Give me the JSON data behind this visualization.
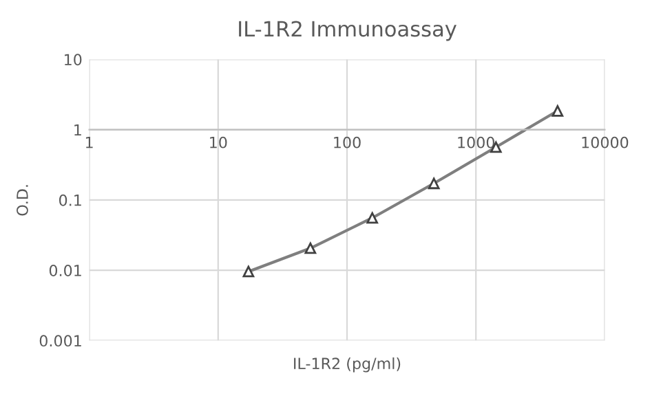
{
  "chart_data": {
    "type": "line",
    "title": "IL-1R2 Immunoassay",
    "xlabel": "IL-1R2 (pg/ml)",
    "ylabel": "O.D.",
    "x": [
      17.2,
      52,
      157,
      472,
      1430,
      4300
    ],
    "series": [
      {
        "color": "#7f7f7f",
        "values": [
          0.0096,
          0.0206,
          0.0556,
          0.172,
          0.565,
          1.85
        ]
      }
    ],
    "log": "xy",
    "xlim": [
      1,
      10000
    ],
    "ylim": [
      0.001,
      10
    ],
    "xticks": [
      1,
      10,
      100,
      1000,
      10000
    ],
    "yticks": [
      0.001,
      0.01,
      0.1,
      1,
      10
    ],
    "grid": true,
    "marker": "triangle",
    "line_style": "solid"
  }
}
